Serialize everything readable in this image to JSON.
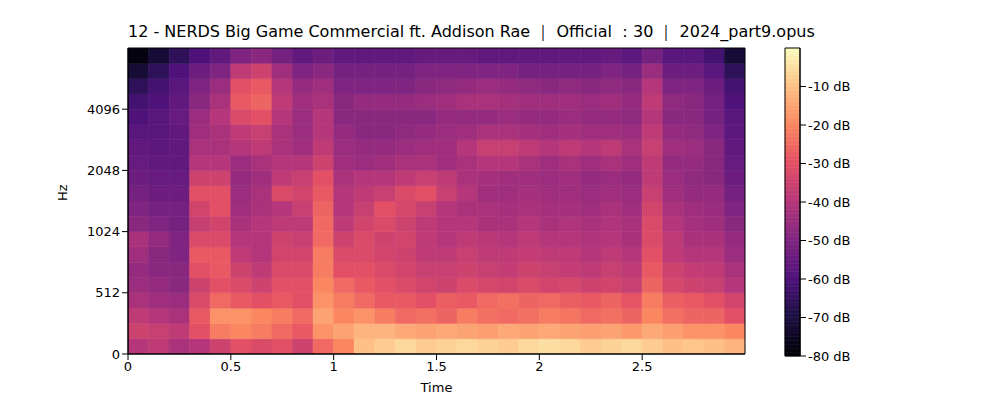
{
  "chart_data": {
    "type": "heatmap",
    "title": "12 - NERDS Big Game Commercial ft. Addison Rae ｜ Official ：30 ｜ 2024_part9.opus",
    "x_label": "Time",
    "y_label": "Hz",
    "xlim": [
      0,
      3
    ],
    "xticks": [
      0,
      0.5,
      1,
      1.5,
      2,
      2.5
    ],
    "ylim": [
      0,
      8192
    ],
    "yticks": [
      0,
      512,
      1024,
      2048,
      4096
    ],
    "time_edges": [
      0,
      0.1,
      0.2,
      0.3,
      0.4,
      0.5,
      0.6,
      0.7,
      0.8,
      0.9,
      1.0,
      1.1,
      1.2,
      1.3,
      1.4,
      1.5,
      1.6,
      1.7,
      1.8,
      1.9,
      2.0,
      2.1,
      2.2,
      2.3,
      2.4,
      2.5,
      2.6,
      2.7,
      2.8,
      2.9,
      3.0
    ],
    "freq_edges": [
      0,
      128,
      256,
      384,
      512,
      640,
      768,
      896,
      1024,
      1218,
      1448,
      1722,
      2048,
      2435,
      2896,
      3444,
      4096,
      4871,
      5793,
      6889,
      8192
    ],
    "cells": [
      [
        -40,
        -38,
        -42,
        -40,
        -35,
        -30,
        -32,
        -30,
        -35,
        -25,
        -20,
        -10,
        -8,
        -6,
        -8,
        -7,
        -6,
        -7,
        -8,
        -6,
        -5,
        -6,
        -8,
        -7,
        -6,
        -8,
        -10,
        -9,
        -10,
        -12
      ],
      [
        -35,
        -36,
        -38,
        -30,
        -22,
        -20,
        -22,
        -25,
        -28,
        -18,
        -15,
        -12,
        -12,
        -14,
        -15,
        -14,
        -15,
        -16,
        -14,
        -15,
        -14,
        -15,
        -16,
        -15,
        -17,
        -14,
        -16,
        -18,
        -18,
        -20
      ],
      [
        -38,
        -40,
        -42,
        -28,
        -18,
        -18,
        -20,
        -22,
        -25,
        -15,
        -20,
        -18,
        -22,
        -25,
        -24,
        -26,
        -22,
        -24,
        -25,
        -24,
        -22,
        -23,
        -25,
        -24,
        -26,
        -20,
        -24,
        -26,
        -26,
        -30
      ],
      [
        -42,
        -44,
        -45,
        -32,
        -25,
        -28,
        -30,
        -28,
        -30,
        -18,
        -22,
        -25,
        -28,
        -28,
        -30,
        -27,
        -28,
        -25,
        -24,
        -26,
        -25,
        -27,
        -28,
        -26,
        -29,
        -22,
        -27,
        -28,
        -30,
        -34
      ],
      [
        -45,
        -46,
        -48,
        -35,
        -30,
        -32,
        -35,
        -30,
        -30,
        -20,
        -25,
        -28,
        -30,
        -32,
        -34,
        -35,
        -32,
        -33,
        -34,
        -32,
        -34,
        -33,
        -35,
        -34,
        -36,
        -26,
        -33,
        -35,
        -36,
        -40
      ],
      [
        -46,
        -48,
        -48,
        -30,
        -28,
        -35,
        -38,
        -32,
        -32,
        -22,
        -30,
        -30,
        -32,
        -34,
        -36,
        -36,
        -35,
        -36,
        -37,
        -35,
        -36,
        -37,
        -38,
        -36,
        -38,
        -28,
        -35,
        -37,
        -38,
        -42
      ],
      [
        -44,
        -48,
        -50,
        -28,
        -28,
        -38,
        -40,
        -34,
        -34,
        -22,
        -32,
        -32,
        -34,
        -35,
        -38,
        -38,
        -36,
        -38,
        -38,
        -37,
        -38,
        -38,
        -40,
        -38,
        -40,
        -30,
        -38,
        -40,
        -40,
        -45
      ],
      [
        -42,
        -46,
        -50,
        -32,
        -32,
        -40,
        -40,
        -35,
        -36,
        -25,
        -35,
        -32,
        -35,
        -34,
        -38,
        -40,
        -38,
        -39,
        -40,
        -38,
        -40,
        -40,
        -41,
        -40,
        -42,
        -32,
        -38,
        -42,
        -42,
        -46
      ],
      [
        -48,
        -50,
        -52,
        -36,
        -34,
        -42,
        -40,
        -38,
        -38,
        -25,
        -38,
        -34,
        -32,
        -35,
        -38,
        -40,
        -40,
        -42,
        -42,
        -40,
        -42,
        -41,
        -42,
        -41,
        -42,
        -32,
        -40,
        -43,
        -44,
        -48
      ],
      [
        -50,
        -52,
        -52,
        -34,
        -30,
        -44,
        -42,
        -40,
        -36,
        -26,
        -40,
        -36,
        -30,
        -33,
        -36,
        -40,
        -42,
        -42,
        -43,
        -42,
        -43,
        -43,
        -44,
        -42,
        -44,
        -34,
        -42,
        -44,
        -45,
        -50
      ],
      [
        -52,
        -54,
        -54,
        -30,
        -30,
        -45,
        -42,
        -32,
        -34,
        -28,
        -40,
        -38,
        -36,
        -32,
        -30,
        -36,
        -40,
        -44,
        -44,
        -43,
        -44,
        -44,
        -45,
        -44,
        -45,
        -36,
        -44,
        -46,
        -46,
        -52
      ],
      [
        -54,
        -55,
        -55,
        -35,
        -35,
        -46,
        -44,
        -38,
        -36,
        -30,
        -42,
        -40,
        -40,
        -38,
        -36,
        -38,
        -42,
        -43,
        -44,
        -44,
        -45,
        -44,
        -46,
        -45,
        -46,
        -38,
        -45,
        -47,
        -48,
        -54
      ],
      [
        -55,
        -56,
        -56,
        -40,
        -40,
        -45,
        -42,
        -40,
        -40,
        -35,
        -44,
        -45,
        -44,
        -42,
        -42,
        -44,
        -42,
        -40,
        -40,
        -42,
        -44,
        -42,
        -44,
        -42,
        -44,
        -38,
        -46,
        -46,
        -48,
        -55
      ],
      [
        -56,
        -57,
        -56,
        -42,
        -42,
        -40,
        -38,
        -42,
        -44,
        -38,
        -45,
        -46,
        -46,
        -45,
        -44,
        -44,
        -40,
        -36,
        -36,
        -38,
        -40,
        -38,
        -40,
        -38,
        -42,
        -36,
        -44,
        -45,
        -48,
        -56
      ],
      [
        -58,
        -58,
        -56,
        -44,
        -42,
        -38,
        -36,
        -42,
        -45,
        -40,
        -46,
        -48,
        -48,
        -47,
        -46,
        -45,
        -44,
        -42,
        -42,
        -43,
        -44,
        -43,
        -44,
        -44,
        -45,
        -38,
        -46,
        -47,
        -50,
        -57
      ],
      [
        -60,
        -58,
        -55,
        -45,
        -40,
        -32,
        -30,
        -40,
        -45,
        -40,
        -48,
        -48,
        -48,
        -48,
        -48,
        -46,
        -46,
        -46,
        -45,
        -46,
        -46,
        -45,
        -46,
        -46,
        -47,
        -40,
        -48,
        -48,
        -52,
        -58
      ],
      [
        -62,
        -60,
        -56,
        -48,
        -42,
        -28,
        -26,
        -38,
        -44,
        -42,
        -48,
        -46,
        -46,
        -46,
        -45,
        -44,
        -42,
        -42,
        -43,
        -44,
        -44,
        -44,
        -45,
        -44,
        -46,
        -38,
        -47,
        -48,
        -52,
        -60
      ],
      [
        -66,
        -62,
        -58,
        -50,
        -45,
        -30,
        -28,
        -40,
        -46,
        -44,
        -50,
        -50,
        -50,
        -50,
        -48,
        -47,
        -46,
        -45,
        -46,
        -47,
        -48,
        -47,
        -48,
        -47,
        -48,
        -40,
        -50,
        -50,
        -54,
        -62
      ],
      [
        -72,
        -66,
        -60,
        -54,
        -50,
        -38,
        -35,
        -44,
        -50,
        -48,
        -52,
        -52,
        -52,
        -52,
        -50,
        -50,
        -50,
        -50,
        -50,
        -52,
        -52,
        -52,
        -52,
        -50,
        -52,
        -45,
        -54,
        -54,
        -58,
        -66
      ],
      [
        -78,
        -72,
        -66,
        -60,
        -56,
        -50,
        -48,
        -52,
        -56,
        -54,
        -56,
        -56,
        -56,
        -56,
        -55,
        -55,
        -55,
        -56,
        -56,
        -56,
        -56,
        -56,
        -56,
        -55,
        -57,
        -52,
        -58,
        -58,
        -62,
        -72
      ]
    ],
    "colorbar": {
      "range": [
        -80,
        0
      ],
      "ticks": [
        {
          "value": -10,
          "label": "-10 dB"
        },
        {
          "value": -20,
          "label": "-20 dB"
        },
        {
          "value": -30,
          "label": "-30 dB"
        },
        {
          "value": -40,
          "label": "-40 dB"
        },
        {
          "value": -50,
          "label": "-50 dB"
        },
        {
          "value": -60,
          "label": "-60 dB"
        },
        {
          "value": -70,
          "label": "-70 dB"
        },
        {
          "value": -80,
          "label": "-80 dB"
        }
      ]
    }
  }
}
